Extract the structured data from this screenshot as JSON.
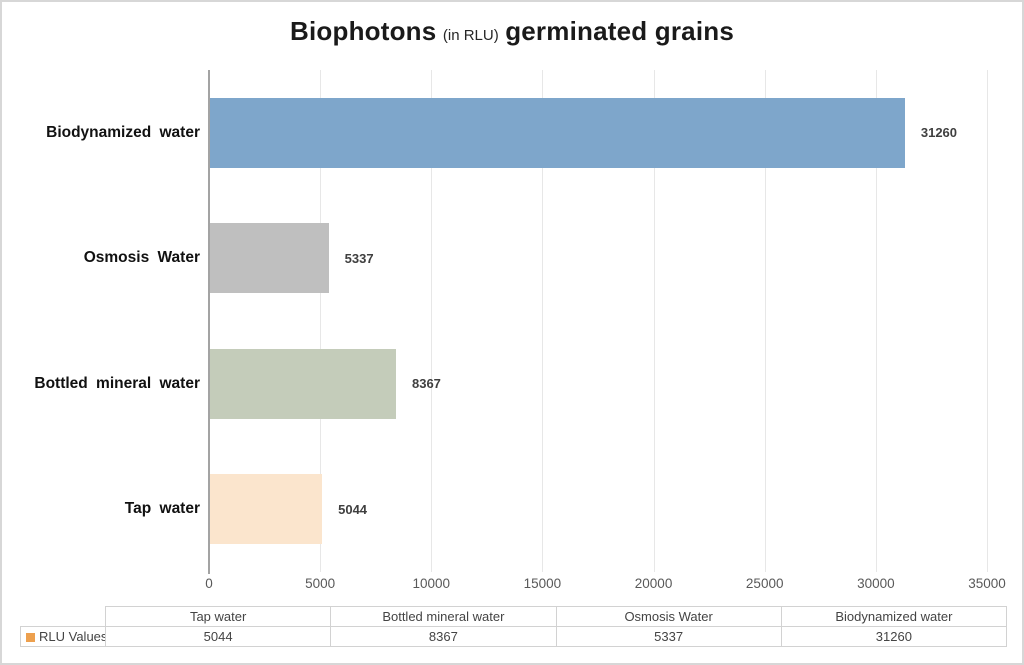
{
  "title": {
    "part1": "Biophotons",
    "part2": "(in RLU)",
    "part3": "germinated grains"
  },
  "chart_data": {
    "type": "bar",
    "orientation": "horizontal",
    "title": "Biophotons (in RLU) germinated grains",
    "series_name": "RLU Values",
    "categories_top_to_bottom": [
      "Biodynamized water",
      "Osmosis Water",
      "Bottled mineral water",
      "Tap water"
    ],
    "values_top_to_bottom": [
      31260,
      5337,
      8367,
      5044
    ],
    "bar_colors_top_to_bottom": [
      "#7ea6cb",
      "#bfbfbf",
      "#c4ccba",
      "#fbe5cd"
    ],
    "data_labels_top_to_bottom": [
      "31260",
      "5337",
      "8367",
      "5044"
    ],
    "xlim": [
      0,
      35000
    ],
    "x_ticks": [
      0,
      5000,
      10000,
      15000,
      20000,
      25000,
      30000,
      35000
    ],
    "x_tick_labels": [
      "0",
      "5000",
      "10000",
      "15000",
      "20000",
      "25000",
      "30000",
      "35000"
    ],
    "grid": true,
    "legend_position": "bottom-table"
  },
  "data_table": {
    "legend_label": "RLU Values",
    "legend_color": "#eda04e",
    "columns": [
      "Tap water",
      "Bottled mineral water",
      "Osmosis Water",
      "Biodynamized water"
    ],
    "values": [
      "5044",
      "8367",
      "5337",
      "31260"
    ]
  },
  "colors": {
    "axis_line": "#a3a3a3",
    "gridline": "#e7e7e7",
    "tick_text": "#595959",
    "value_label_text": "#3f3f3f",
    "table_border": "#d2d2d2",
    "frame_border": "#d7d7d7"
  }
}
